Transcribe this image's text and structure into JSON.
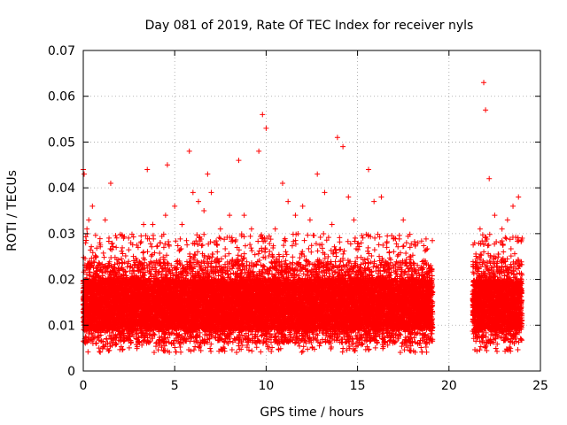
{
  "chart_data": {
    "type": "scatter",
    "title": "Day 081 of 2019, Rate Of TEC Index for receiver nyls",
    "xlabel": "GPS time / hours",
    "ylabel": "ROTI / TECUs",
    "xlim": [
      0,
      25
    ],
    "ylim": [
      0,
      0.07
    ],
    "x_ticks": [
      0,
      5,
      10,
      15,
      20,
      25
    ],
    "y_ticks": [
      0,
      0.01,
      0.02,
      0.03,
      0.04,
      0.05,
      0.06,
      0.07
    ],
    "x_tick_labels": [
      "0",
      "5",
      "10",
      "15",
      "20",
      "25"
    ],
    "y_tick_labels": [
      "0",
      "0.01",
      "0.02",
      "0.03",
      "0.04",
      "0.05",
      "0.06",
      "0.07"
    ],
    "grid": true,
    "marker": "plus",
    "color": "#ff0000",
    "data_gap_hours": [
      19.1,
      21.3
    ],
    "series": [
      {
        "points": [
          [
            0.0,
            0.044
          ],
          [
            0.05,
            0.043
          ],
          [
            0.1,
            0.022
          ],
          [
            0.2,
            0.031
          ],
          [
            0.3,
            0.033
          ],
          [
            0.5,
            0.036
          ],
          [
            0.7,
            0.025
          ],
          [
            0.9,
            0.028
          ],
          [
            1.2,
            0.033
          ],
          [
            1.5,
            0.041
          ],
          [
            1.8,
            0.027
          ],
          [
            2.2,
            0.029
          ],
          [
            2.6,
            0.028
          ],
          [
            3.0,
            0.027
          ],
          [
            3.3,
            0.032
          ],
          [
            3.5,
            0.044
          ],
          [
            3.8,
            0.032
          ],
          [
            4.2,
            0.028
          ],
          [
            4.5,
            0.034
          ],
          [
            4.6,
            0.045
          ],
          [
            5.0,
            0.036
          ],
          [
            5.4,
            0.032
          ],
          [
            5.8,
            0.048
          ],
          [
            6.0,
            0.039
          ],
          [
            6.3,
            0.037
          ],
          [
            6.6,
            0.035
          ],
          [
            6.8,
            0.043
          ],
          [
            7.0,
            0.039
          ],
          [
            7.5,
            0.031
          ],
          [
            8.0,
            0.034
          ],
          [
            8.5,
            0.046
          ],
          [
            8.8,
            0.034
          ],
          [
            9.2,
            0.031
          ],
          [
            9.6,
            0.048
          ],
          [
            9.8,
            0.056
          ],
          [
            10.0,
            0.053
          ],
          [
            10.5,
            0.031
          ],
          [
            10.9,
            0.041
          ],
          [
            11.2,
            0.037
          ],
          [
            11.6,
            0.034
          ],
          [
            12.0,
            0.036
          ],
          [
            12.4,
            0.033
          ],
          [
            12.8,
            0.043
          ],
          [
            13.2,
            0.039
          ],
          [
            13.6,
            0.032
          ],
          [
            13.9,
            0.051
          ],
          [
            14.2,
            0.049
          ],
          [
            14.5,
            0.038
          ],
          [
            14.8,
            0.033
          ],
          [
            15.2,
            0.028
          ],
          [
            15.6,
            0.044
          ],
          [
            15.9,
            0.037
          ],
          [
            16.3,
            0.038
          ],
          [
            16.6,
            0.027
          ],
          [
            17.0,
            0.029
          ],
          [
            17.5,
            0.033
          ],
          [
            17.9,
            0.025
          ],
          [
            18.3,
            0.028
          ],
          [
            18.7,
            0.024
          ],
          [
            19.0,
            0.023
          ],
          [
            21.4,
            0.028
          ],
          [
            21.7,
            0.031
          ],
          [
            21.9,
            0.063
          ],
          [
            22.0,
            0.057
          ],
          [
            22.2,
            0.042
          ],
          [
            22.5,
            0.034
          ],
          [
            22.9,
            0.031
          ],
          [
            23.2,
            0.033
          ],
          [
            23.5,
            0.036
          ],
          [
            23.8,
            0.038
          ],
          [
            24.0,
            0.029
          ]
        ]
      }
    ]
  }
}
